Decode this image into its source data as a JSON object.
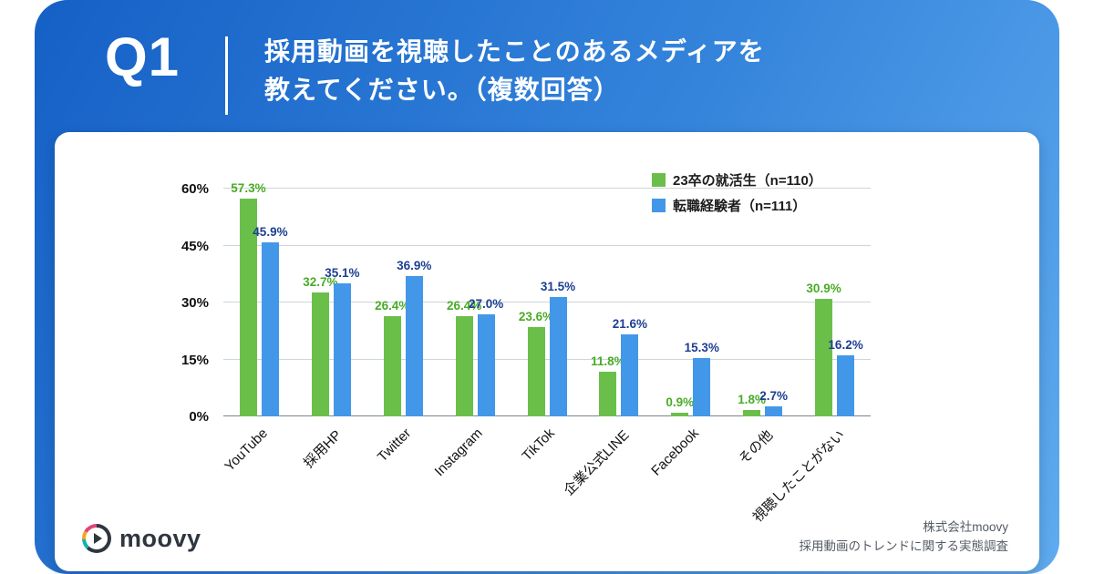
{
  "header": {
    "question_label": "Q1",
    "title_line1": "採用動画を視聴したことのあるメディアを",
    "title_line2": "教えてください。（複数回答）"
  },
  "footer": {
    "brand": "moovy",
    "company": "株式会社moovy",
    "survey": "採用動画のトレンドに関する実態調査"
  },
  "colors": {
    "green": "#6abf4a",
    "blue": "#4397e8",
    "green_label": "#4aab27",
    "blue_label": "#1d3f92"
  },
  "chart_data": {
    "type": "bar",
    "categories": [
      "YouTube",
      "採用HP",
      "Twitter",
      "Instagram",
      "TikTok",
      "企業公式LINE",
      "Facebook",
      "その他",
      "視聴したことがない"
    ],
    "series": [
      {
        "name": "23卒の就活生（n=110）",
        "color_key": "green",
        "values": [
          57.3,
          32.7,
          26.4,
          26.4,
          23.6,
          11.8,
          0.9,
          1.8,
          30.9
        ]
      },
      {
        "name": "転職経験者（n=111）",
        "color_key": "blue",
        "values": [
          45.9,
          35.1,
          36.9,
          27.0,
          31.5,
          21.6,
          15.3,
          2.7,
          16.2
        ]
      }
    ],
    "yticks": [
      0,
      15,
      30,
      45,
      60
    ],
    "ylim": [
      0,
      60
    ],
    "ytick_suffix": "%",
    "legend_position": "top-right",
    "grid": true
  }
}
